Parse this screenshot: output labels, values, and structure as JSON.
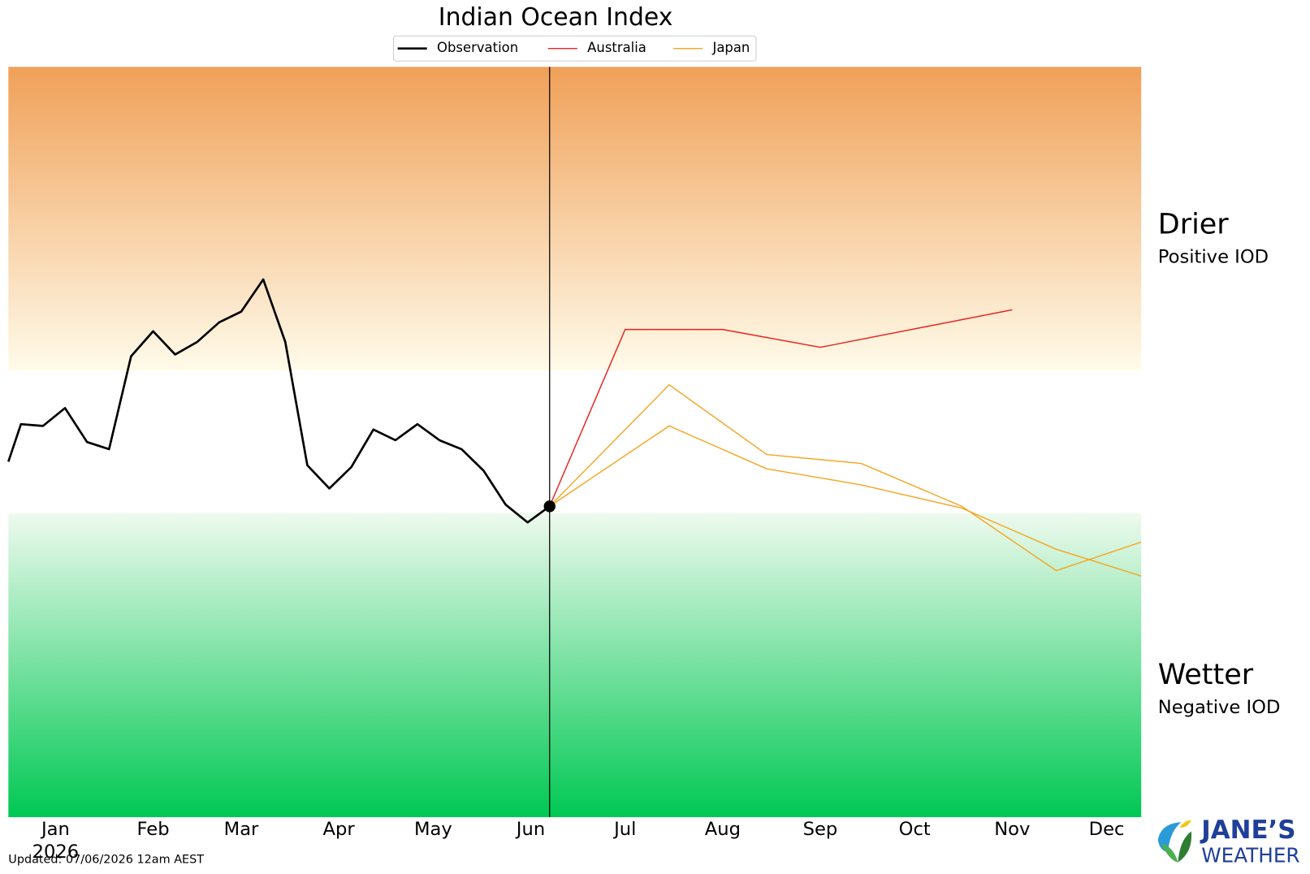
{
  "chart_data": {
    "type": "line",
    "title": "Indian Ocean Index",
    "xlim": [
      -15,
      345
    ],
    "ylim": [
      -2.1,
      2.1
    ],
    "xticks": [
      {
        "value": 0,
        "label": "Jan"
      },
      {
        "value": 31,
        "label": "Feb"
      },
      {
        "value": 59,
        "label": "Mar"
      },
      {
        "value": 90,
        "label": "Apr"
      },
      {
        "value": 120,
        "label": "May"
      },
      {
        "value": 151,
        "label": "Jun"
      },
      {
        "value": 181,
        "label": "Jul"
      },
      {
        "value": 212,
        "label": "Aug"
      },
      {
        "value": 243,
        "label": "Sep"
      },
      {
        "value": 273,
        "label": "Oct"
      },
      {
        "value": 304,
        "label": "Nov"
      },
      {
        "value": 334,
        "label": "Dec"
      }
    ],
    "year_label": "2026",
    "thresholds": [
      -0.4,
      0.4
    ],
    "now": 157,
    "series": [
      {
        "name": "Observation",
        "color": "#000000",
        "x": [
          -15,
          -11,
          -4,
          3,
          10,
          17,
          24,
          31,
          38,
          45,
          52,
          59,
          66,
          73,
          80,
          87,
          94,
          101,
          108,
          115,
          122,
          129,
          136,
          143,
          150,
          157
        ],
        "values": [
          -0.11,
          0.1,
          0.09,
          0.19,
          0.0,
          -0.04,
          0.48,
          0.62,
          0.49,
          0.56,
          0.67,
          0.73,
          0.91,
          0.56,
          -0.13,
          -0.26,
          -0.14,
          0.07,
          0.01,
          0.1,
          0.01,
          -0.04,
          -0.16,
          -0.35,
          -0.45,
          -0.36
        ]
      },
      {
        "name": "Australia",
        "color": "#e8211c",
        "x": [
          157,
          181,
          212,
          243,
          304
        ],
        "values": [
          -0.36,
          0.63,
          0.63,
          0.53,
          0.74
        ]
      },
      {
        "name": "Japan",
        "color": "#f5a623",
        "x": [
          157,
          195,
          226,
          256,
          288,
          318,
          345
        ],
        "members": [
          {
            "values": [
              -0.36,
              0.32,
              -0.07,
              -0.12,
              -0.36,
              -0.72,
              -0.56
            ]
          },
          {
            "values": [
              -0.36,
              0.09,
              -0.15,
              -0.24,
              -0.37,
              -0.6,
              -0.75
            ]
          }
        ]
      }
    ],
    "annotations": {
      "drier": "Drier",
      "positive": "Positive IOD",
      "wetter": "Wetter",
      "negative": "Negative IOD"
    },
    "updated": "Updated: 07/06/2026 12am AEST",
    "logo": {
      "line1": "JANE’S",
      "line2": "WEATHER"
    }
  }
}
